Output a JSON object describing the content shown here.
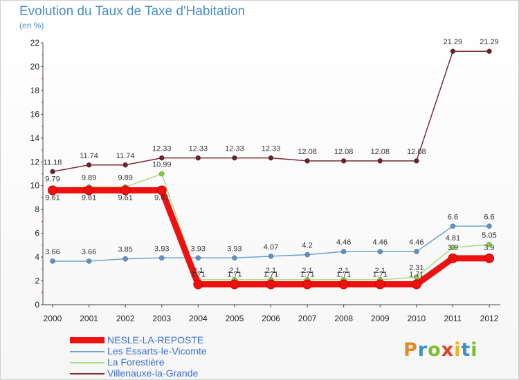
{
  "title": "Evolution du Taux de Taxe d'Habitation",
  "unit_label": "(en %)",
  "logo": {
    "text": "Proxiti",
    "letters": [
      {
        "ch": "P",
        "color": "#e58a2a"
      },
      {
        "ch": "r",
        "color": "#3a8fd0"
      },
      {
        "ch": "o",
        "color": "#7bbf2f"
      },
      {
        "ch": "x",
        "color": "#e0402a"
      },
      {
        "ch": "i",
        "color": "#f0b020"
      },
      {
        "ch": "t",
        "color": "#3a8fd0"
      },
      {
        "ch": "i",
        "color": "#7bbf2f"
      }
    ]
  },
  "chart_data": {
    "type": "line",
    "x": [
      2000,
      2001,
      2002,
      2003,
      2004,
      2005,
      2006,
      2007,
      2008,
      2009,
      2010,
      2011,
      2012
    ],
    "ylim": [
      0,
      22
    ],
    "yticks": [
      0,
      2,
      4,
      6,
      8,
      10,
      12,
      14,
      16,
      18,
      20,
      22
    ],
    "grid": false,
    "legend_position": "bottom-left",
    "series": [
      {
        "name": "NESLE-LA-REPOSTE",
        "color": "#ee1111",
        "width": "thick",
        "values": [
          9.61,
          9.61,
          9.61,
          9.61,
          1.71,
          1.71,
          1.71,
          1.71,
          1.71,
          1.71,
          1.71,
          3.9,
          3.9
        ],
        "labels": [
          "9.61",
          "9.61",
          "9.61",
          "9.61",
          "1.71",
          "1.71",
          "1.71",
          "1.71",
          "1.71",
          "1.71",
          "1.71",
          "3.9",
          "3.9"
        ]
      },
      {
        "name": "Les Essarts-le-Vicomte",
        "color": "#6aa2d0",
        "width": "thin",
        "values": [
          3.66,
          3.66,
          3.85,
          3.93,
          3.93,
          3.93,
          4.07,
          4.2,
          4.46,
          4.46,
          4.46,
          6.6,
          6.6
        ],
        "labels": [
          "3.66",
          "3.66",
          "3.85",
          "3.93",
          "3.93",
          "3.93",
          "4.07",
          "4.2",
          "4.46",
          "4.46",
          "4.46",
          "6.6",
          "6.6"
        ]
      },
      {
        "name": "La Forestière",
        "color": "#a6dd80",
        "width": "thin",
        "values": [
          9.79,
          9.89,
          9.89,
          10.99,
          2.1,
          2.1,
          2.1,
          2.1,
          2.1,
          2.1,
          2.31,
          4.81,
          5.05
        ],
        "labels": [
          "9.79",
          "9.89",
          "9.89",
          "10.99",
          "2.1",
          "2.1",
          "2.1",
          "2.1",
          "2.1",
          "2.1",
          "2.31",
          "4.81",
          "5.05"
        ]
      },
      {
        "name": "Villenauxe-la-Grande",
        "color": "#7b2a35",
        "width": "thin",
        "values": [
          11.18,
          11.74,
          11.74,
          12.33,
          12.33,
          12.33,
          12.33,
          12.08,
          12.08,
          12.08,
          12.08,
          21.29,
          21.29
        ],
        "labels": [
          "11.18",
          "11.74",
          "11.74",
          "12.33",
          "12.33",
          "12.33",
          "12.33",
          "12.08",
          "12.08",
          "12.08",
          "12.08",
          "21.29",
          "21.29"
        ]
      }
    ]
  }
}
